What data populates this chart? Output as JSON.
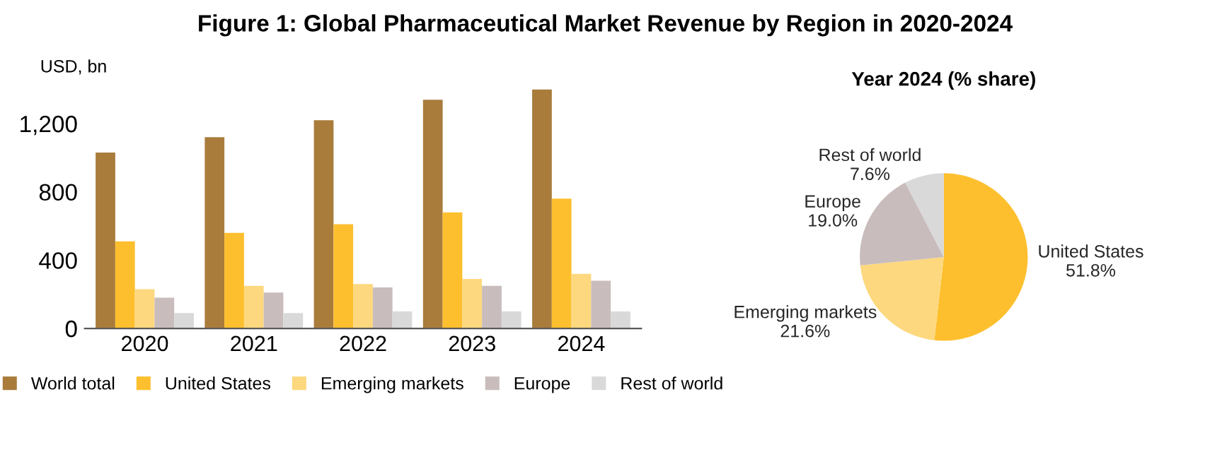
{
  "chart_data": [
    {
      "type": "bar",
      "title": "Figure 1: Global Pharmaceutical Market Revenue by Region in 2020-2024",
      "ylabel": "USD, bn",
      "categories": [
        "2020",
        "2021",
        "2022",
        "2023",
        "2024"
      ],
      "series": [
        {
          "name": "World total",
          "color": "#a97c3c",
          "values": [
            1030,
            1120,
            1220,
            1340,
            1400
          ]
        },
        {
          "name": "United States",
          "color": "#fdbf2d",
          "values": [
            510,
            560,
            610,
            680,
            760
          ]
        },
        {
          "name": "Emerging markets",
          "color": "#fdd87e",
          "values": [
            230,
            250,
            260,
            290,
            320
          ]
        },
        {
          "name": "Europe",
          "color": "#c9bcbc",
          "values": [
            180,
            210,
            240,
            250,
            280
          ]
        },
        {
          "name": "Rest of world",
          "color": "#d9d9d9",
          "values": [
            90,
            90,
            100,
            100,
            100
          ]
        }
      ],
      "ylim": [
        0,
        1450
      ],
      "yticks": [
        0,
        400,
        800,
        {
          "value": 1200,
          "label": "1,200"
        }
      ],
      "grid": false,
      "legend": "bottom"
    },
    {
      "type": "pie",
      "title": "Year 2024 (% share)",
      "categories": [
        "United States",
        "Emerging markets",
        "Europe",
        "Rest of world"
      ],
      "values": [
        51.8,
        21.6,
        19.0,
        7.6
      ],
      "value_labels": [
        "51.8%",
        "21.6%",
        "19.0%",
        "7.6%"
      ],
      "colors": [
        "#fdbf2d",
        "#fdd87e",
        "#c9bcbc",
        "#d9d9d9"
      ]
    }
  ]
}
